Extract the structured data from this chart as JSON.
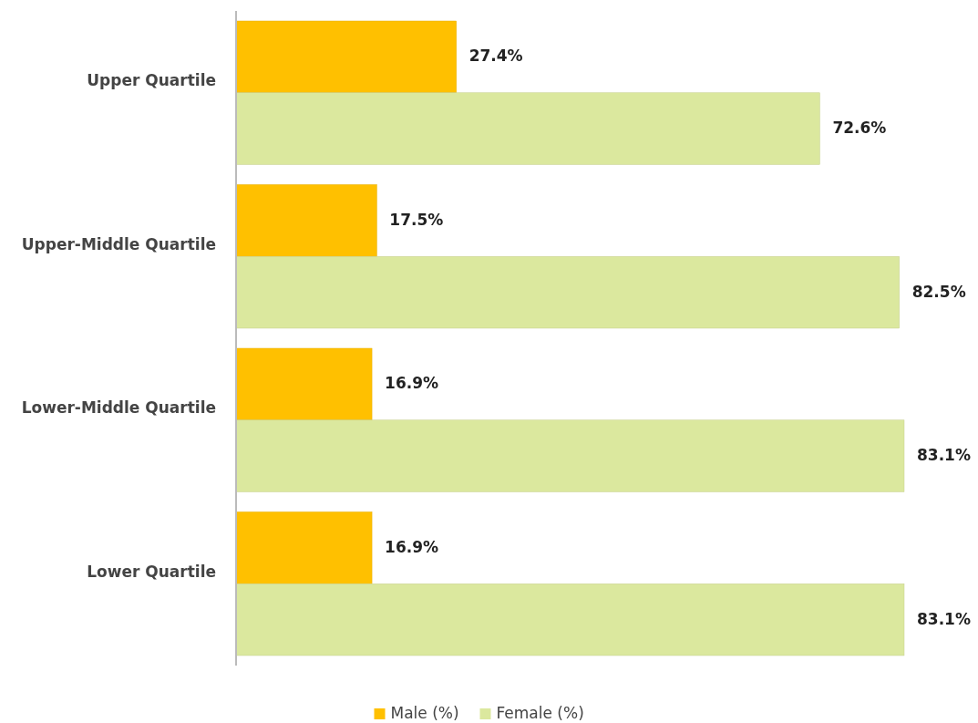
{
  "chart_data": {
    "type": "bar",
    "orientation": "horizontal",
    "categories": [
      "Upper Quartile",
      "Upper-Middle Quartile",
      "Lower-Middle Quartile",
      "Lower Quartile"
    ],
    "series": [
      {
        "name": "Male (%)",
        "color": "#ffc000",
        "values": [
          27.4,
          17.5,
          16.9,
          16.9
        ],
        "value_labels": [
          "27.4%",
          "17.5%",
          "16.9%",
          "16.9%"
        ]
      },
      {
        "name": "Female (%)",
        "color": "#dbe89e",
        "values": [
          72.6,
          82.5,
          83.1,
          83.1
        ],
        "value_labels": [
          "72.6%",
          "82.5%",
          "83.1%",
          "83.1%"
        ]
      }
    ],
    "legend": "bottom"
  }
}
